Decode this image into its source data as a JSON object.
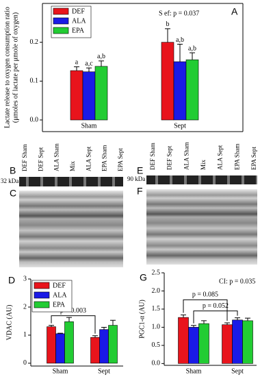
{
  "chart_data": [
    {
      "type": "bar",
      "panel": "A",
      "ylabel": [
        "Lactate release to oxygen consumption ratio",
        "(μmoles of lactate per μmole of oxygen)"
      ],
      "annotations": [
        "S ef: p = 0.037"
      ],
      "categories": [
        "Sham",
        "Sept"
      ],
      "series": [
        {
          "name": "DEF",
          "color": "#e8141c",
          "values": [
            0.127,
            0.2
          ],
          "errors": [
            0.01,
            0.035
          ],
          "letters": [
            "a",
            "b"
          ]
        },
        {
          "name": "ALA",
          "color": "#1a1ae6",
          "values": [
            0.124,
            0.15
          ],
          "errors": [
            0.01,
            0.045
          ],
          "letters": [
            "a,c",
            "a,b"
          ]
        },
        {
          "name": "EPA",
          "color": "#22cc33",
          "values": [
            0.138,
            0.155
          ],
          "errors": [
            0.014,
            0.018
          ],
          "letters": [
            "a,b",
            "a,b"
          ]
        }
      ],
      "ylim": [
        -0.03,
        0.3
      ],
      "yticks": [
        {
          "value": 0,
          "label": "0.0"
        },
        0.1,
        0.2
      ]
    },
    {
      "type": "bar",
      "panel": "D",
      "ylabel": [
        "VDAC (AU)"
      ],
      "annotations": [],
      "brackets": [
        "p = 0.003"
      ],
      "categories": [
        "Sham",
        "Sept"
      ],
      "series": [
        {
          "name": "DEF",
          "color": "#e8141c",
          "values": [
            1.3,
            0.92
          ],
          "errors": [
            0.05,
            0.06
          ]
        },
        {
          "name": "ALA",
          "color": "#1a1ae6",
          "values": [
            1.05,
            1.2
          ],
          "errors": [
            0.02,
            0.08
          ]
        },
        {
          "name": "EPA",
          "color": "#22cc33",
          "values": [
            1.48,
            1.35
          ],
          "errors": [
            0.15,
            0.18
          ]
        }
      ],
      "ylim": [
        -0.1,
        3
      ],
      "yticks": [
        0,
        1,
        2,
        3
      ]
    },
    {
      "type": "bar",
      "panel": "G",
      "ylabel": [
        "PGC1-α (AU)"
      ],
      "annotations": [
        "CI: p = 0.035"
      ],
      "brackets": [
        "p = 0.085",
        "p = 0.052"
      ],
      "categories": [
        "Sham",
        "Sept"
      ],
      "series": [
        {
          "name": "DEF",
          "color": "#e8141c",
          "values": [
            1.27,
            1.07
          ],
          "errors": [
            0.07,
            0.05
          ]
        },
        {
          "name": "ALA",
          "color": "#1a1ae6",
          "values": [
            1.0,
            1.2
          ],
          "errors": [
            0.05,
            0.06
          ]
        },
        {
          "name": "EPA",
          "color": "#22cc33",
          "values": [
            1.1,
            1.18
          ],
          "errors": [
            0.08,
            0.07
          ]
        }
      ],
      "ylim": [
        -0.05,
        2.5
      ],
      "yticks": [
        {
          "value": 0,
          "label": "0.0"
        },
        0.5,
        {
          "value": 1,
          "label": "1.0"
        },
        1.5,
        {
          "value": 2,
          "label": "2.0"
        },
        2.5
      ]
    }
  ],
  "blots": {
    "left": {
      "panel_top": "B",
      "panel_bottom": "C",
      "marker": "32 kDa",
      "lanes": [
        "DEF Sham",
        "DEF Sept",
        "ALA Sham",
        "Mix",
        "ALA Sept",
        "EPA Sham",
        "EPA Sept"
      ]
    },
    "right": {
      "panel_top": "E",
      "panel_bottom": "F",
      "marker": "90 kDa",
      "lanes": [
        "DEF Sham",
        "DEF Sept",
        "ALA Sham",
        "Mix",
        "ALA Sept",
        "EPA Sham",
        "EPA Sept"
      ]
    }
  }
}
